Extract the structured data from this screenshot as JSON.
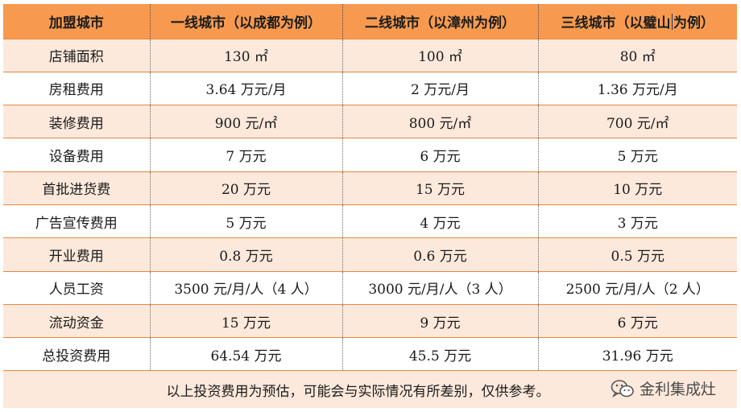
{
  "table": {
    "headers": [
      "加盟城市",
      "一线城市（以成都为例）",
      "二线城市（以漳州为例）",
      "三线城市（以璧山为例）"
    ],
    "rows": [
      [
        "店铺面积",
        "130 ㎡",
        "100 ㎡",
        "80 ㎡"
      ],
      [
        "房租费用",
        "3.64 万元/月",
        "2 万元/月",
        "1.36 万元/月"
      ],
      [
        "装修费用",
        "900 元/㎡",
        "800 元/㎡",
        "700 元/㎡"
      ],
      [
        "设备费用",
        "7 万元",
        "6 万元",
        "5 万元"
      ],
      [
        "首批进货费",
        "20 万元",
        "15 万元",
        "10 万元"
      ],
      [
        "广告宣传费用",
        "5 万元",
        "4 万元",
        "3 万元"
      ],
      [
        "开业费用",
        "0.8 万元",
        "0.6 万元",
        "0.5 万元"
      ],
      [
        "人员工资",
        "3500 元/月/人（4 人）",
        "3000 元/月/人（3 人）",
        "2500 元/月/人（2 人）"
      ],
      [
        "流动资金",
        "15 万元",
        "9 万元",
        "6 万元"
      ],
      [
        "总投资费用",
        "64.54 万元",
        "45.5 万元",
        "31.96 万元"
      ]
    ],
    "note": "以上投资费用为预估，可能会与实际情况有所差别，仅供参考。"
  },
  "watermark": {
    "text": "金利集成灶",
    "icon": "wechat-icon"
  },
  "colors": {
    "header_bg": "#f79a4f",
    "band_bg": "#fde9dc",
    "border": "#e6883f"
  }
}
